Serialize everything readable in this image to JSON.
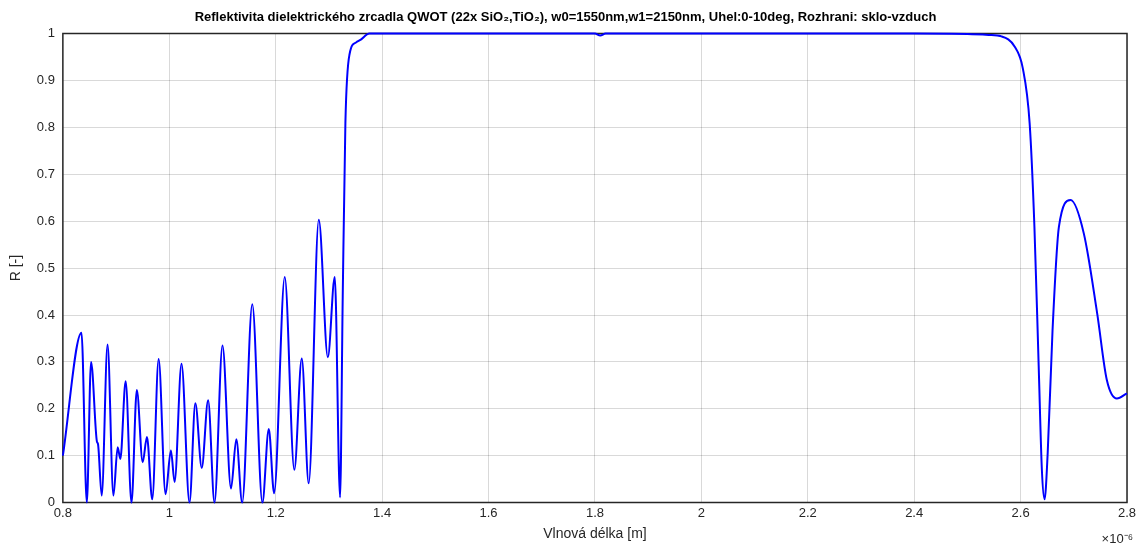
{
  "chart_data": {
    "type": "line",
    "title": "Reflektivita dielektrického zrcadla QWOT (22x SiO₂,TiO₂), w0=1550nm,w1=2150nm, Uhel:0-10deg, Rozhrani: sklo-vzduch",
    "xlabel": "Vlnová délka [m]",
    "ylabel": "R [-]",
    "annotations": [
      "×10⁻⁶"
    ],
    "xlim": [
      0.8,
      2.8
    ],
    "xticks": [
      0.8,
      1,
      1.2,
      1.4,
      1.6,
      1.8,
      2,
      2.2,
      2.4,
      2.6,
      2.8
    ],
    "ylim": [
      0,
      1
    ],
    "yticks": [
      0,
      0.1,
      0.2,
      0.3,
      0.4,
      0.5,
      0.6,
      0.7,
      0.8,
      0.9,
      1
    ],
    "grid": true,
    "legend": false,
    "marker": "none",
    "line_style": "solid",
    "series": [
      {
        "color": "#0000ff",
        "x": [
          0.8,
          0.835,
          0.845,
          0.853,
          0.864,
          0.866,
          0.873,
          0.884,
          0.895,
          0.903,
          0.908,
          0.918,
          0.929,
          0.939,
          0.95,
          0.958,
          0.968,
          0.98,
          0.993,
          1.003,
          1.01,
          1.023,
          1.038,
          1.049,
          1.061,
          1.073,
          1.085,
          1.1,
          1.116,
          1.126,
          1.137,
          1.156,
          1.175,
          1.187,
          1.197,
          1.217,
          1.235,
          1.249,
          1.262,
          1.281,
          1.298,
          1.311,
          1.321,
          1.326,
          1.331,
          1.339,
          1.351,
          1.36,
          1.376,
          1.6,
          1.8,
          1.81,
          1.82,
          2.2,
          2.4,
          2.5,
          2.54,
          2.564,
          2.589,
          2.604,
          2.617,
          2.626,
          2.634,
          2.64,
          2.645,
          2.651,
          2.66,
          2.672,
          2.694,
          2.719,
          2.744,
          2.762,
          2.781,
          2.8
        ],
        "values": [
          0.1,
          0.362,
          0,
          0.3,
          0.13,
          0.125,
          0.015,
          0.337,
          0.015,
          0.118,
          0.093,
          0.259,
          0,
          0.24,
          0.086,
          0.14,
          0.007,
          0.306,
          0.018,
          0.111,
          0.044,
          0.296,
          0,
          0.212,
          0.074,
          0.218,
          0,
          0.335,
          0.03,
          0.135,
          0,
          0.423,
          0,
          0.157,
          0.02,
          0.481,
          0.07,
          0.307,
          0.041,
          0.603,
          0.31,
          0.481,
          0.011,
          0.44,
          0.81,
          0.957,
          0.981,
          0.987,
          1,
          1,
          1,
          0.996,
          1,
          1,
          1,
          0.999,
          0.997,
          0.994,
          0.972,
          0.927,
          0.809,
          0.588,
          0.292,
          0.07,
          0.007,
          0.107,
          0.366,
          0.588,
          0.645,
          0.573,
          0.403,
          0.262,
          0.222,
          0.233
        ]
      }
    ]
  }
}
